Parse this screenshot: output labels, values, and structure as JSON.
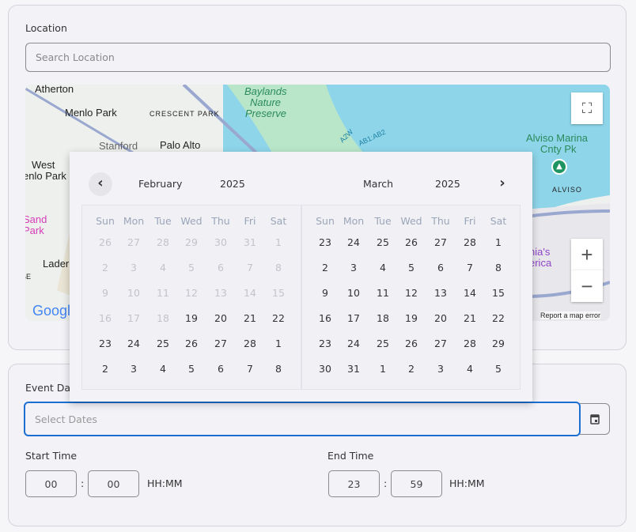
{
  "location": {
    "label": "Location",
    "placeholder": "Search Location"
  },
  "map": {
    "labels": [
      "Atherton",
      "Menlo Park",
      "CRESCENT PARK",
      "Stanford",
      "Palo Alto",
      "West",
      "enlo Park",
      "Sand",
      "Park",
      "Lader",
      "GE",
      "Baylands",
      "Nature",
      "Preserve",
      "A2W",
      "AB1:AB2",
      "Alviso Marina",
      "Cnty Pk",
      "ALVISO",
      "nia's",
      "erica",
      "Google"
    ],
    "report": "Report a map error",
    "zoom_in": "+",
    "zoom_out": "−",
    "water_color": "#8ed5ea",
    "park_color": "#b9e6c9"
  },
  "calendar": {
    "prev": "‹",
    "next": "›",
    "months": [
      {
        "month": "February",
        "year": "2025",
        "weekdays": [
          "Sun",
          "Mon",
          "Tue",
          "Wed",
          "Thu",
          "Fri",
          "Sat"
        ],
        "days": [
          [
            "26",
            "27",
            "28",
            "29",
            "30",
            "31",
            "1"
          ],
          [
            "2",
            "3",
            "4",
            "5",
            "6",
            "7",
            "8"
          ],
          [
            "9",
            "10",
            "11",
            "12",
            "13",
            "14",
            "15"
          ],
          [
            "16",
            "17",
            "18",
            "19",
            "20",
            "21",
            "22"
          ],
          [
            "23",
            "24",
            "25",
            "26",
            "27",
            "28",
            "1"
          ],
          [
            "2",
            "3",
            "4",
            "5",
            "6",
            "7",
            "8"
          ]
        ],
        "disabled_count": 24
      },
      {
        "month": "March",
        "year": "2025",
        "weekdays": [
          "Sun",
          "Mon",
          "Tue",
          "Wed",
          "Thu",
          "Fri",
          "Sat"
        ],
        "days": [
          [
            "23",
            "24",
            "25",
            "26",
            "27",
            "28",
            "1"
          ],
          [
            "2",
            "3",
            "4",
            "5",
            "6",
            "7",
            "8"
          ],
          [
            "9",
            "10",
            "11",
            "12",
            "13",
            "14",
            "15"
          ],
          [
            "16",
            "17",
            "18",
            "19",
            "20",
            "21",
            "22"
          ],
          [
            "23",
            "24",
            "25",
            "26",
            "27",
            "28",
            "29"
          ],
          [
            "30",
            "31",
            "1",
            "2",
            "3",
            "4",
            "5"
          ]
        ],
        "disabled_count": 0
      }
    ]
  },
  "event": {
    "label": "Event Dates",
    "placeholder": "Select Dates",
    "focus_color": "#1a6fd1"
  },
  "start": {
    "label": "Start Time",
    "hh": "00",
    "mm": "00",
    "sep": ":",
    "format": "HH:MM"
  },
  "end": {
    "label": "End Time",
    "hh": "23",
    "mm": "59",
    "sep": ":",
    "format": "HH:MM"
  }
}
